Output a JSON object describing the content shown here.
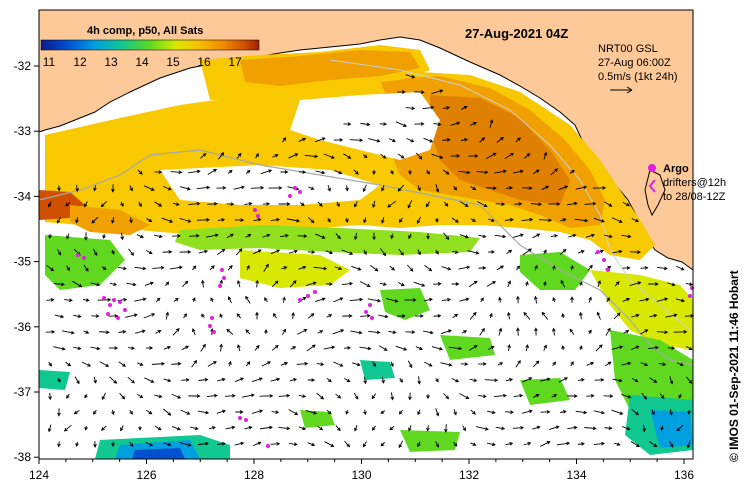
{
  "title": "27-Aug-2021 04Z",
  "colorbar": {
    "label": "4h comp, p50, All Sats",
    "ticks": [
      "11",
      "12",
      "13",
      "14",
      "15",
      "16",
      "17"
    ],
    "colors": [
      "#0a1a8c",
      "#0050d0",
      "#00a0e0",
      "#10c890",
      "#60d820",
      "#d8e800",
      "#f8c000",
      "#f08800",
      "#d05000",
      "#a02000"
    ]
  },
  "currents": {
    "line1": "NRT00 GSL",
    "line2": "27-Aug 06:00Z",
    "line3": "0.5m/s (1kt 24h)"
  },
  "argo": {
    "label": "Argo",
    "drifters_line1": "drifters@12h",
    "drifters_line2": "to 28/08-12Z",
    "color": "#e020e0"
  },
  "x_axis": {
    "ticks": [
      "124",
      "126",
      "128",
      "130",
      "132",
      "134",
      "136"
    ]
  },
  "y_axis": {
    "ticks": [
      "-32",
      "-33",
      "-34",
      "-35",
      "-36",
      "-37",
      "-38"
    ]
  },
  "credit": "© IMOS 01-Sep-2021 11:46 Hobart",
  "colors": {
    "land": "#fdc998",
    "coast": "#000000",
    "warm": "#f0a000",
    "hot": "#e08000",
    "mild": "#f8d000",
    "cool": "#60d820",
    "cold": "#00b0d8"
  }
}
